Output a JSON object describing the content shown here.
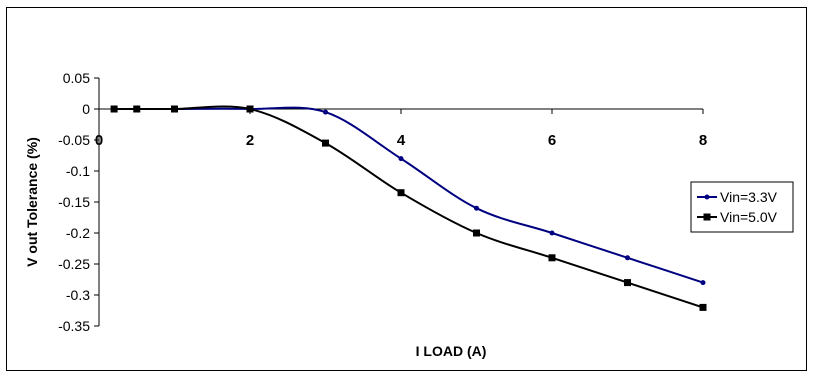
{
  "chart_data": {
    "type": "line",
    "title": "",
    "xlabel": "I LOAD (A)",
    "ylabel": "V out Tolerance (%)",
    "xlim": [
      0,
      8
    ],
    "ylim": [
      -0.35,
      0.05
    ],
    "x_ticks": [
      "0",
      "2",
      "4",
      "6",
      "8"
    ],
    "y_ticks": [
      "0.05",
      "0",
      "-0.05",
      "-0.1",
      "-0.15",
      "-0.2",
      "-0.25",
      "-0.3",
      "-0.35"
    ],
    "grid": false,
    "legend_position": "right",
    "series": [
      {
        "name": "Vin=3.3V",
        "color": "#000080",
        "marker": "circle",
        "x": [
          0.2,
          0.5,
          1,
          2,
          3,
          4,
          5,
          6,
          7,
          8
        ],
        "y": [
          0,
          0,
          0,
          0,
          -0.005,
          -0.08,
          -0.16,
          -0.2,
          -0.24,
          -0.28
        ]
      },
      {
        "name": "Vin=5.0V",
        "color": "#000000",
        "marker": "square",
        "x": [
          0.2,
          0.5,
          1,
          2,
          3,
          4,
          5,
          6,
          7,
          8
        ],
        "y": [
          0,
          0,
          0,
          0,
          -0.055,
          -0.135,
          -0.2,
          -0.24,
          -0.28,
          -0.32
        ]
      }
    ]
  }
}
